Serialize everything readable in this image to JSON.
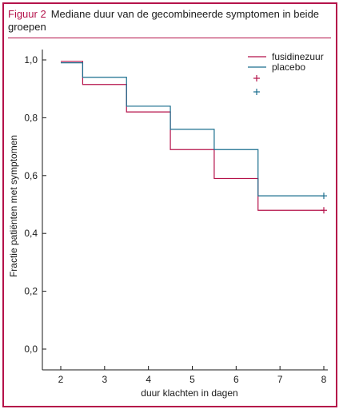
{
  "figure": {
    "label": "Figuur 2",
    "title": "Mediane duur van de gecombineerde symptomen in beide groepen"
  },
  "chart_data": {
    "type": "line",
    "step": true,
    "xlabel": "duur klachten in dagen",
    "ylabel": "Fractie patiënten met symptomen",
    "xlim": [
      2,
      8
    ],
    "ylim": [
      0,
      1
    ],
    "x_ticks": [
      2,
      3,
      4,
      5,
      6,
      7,
      8
    ],
    "y_ticks": [
      0.0,
      0.2,
      0.4,
      0.6,
      0.8,
      1.0
    ],
    "y_tick_labels": [
      "0,0",
      "0,2",
      "0,4",
      "0,6",
      "0,8",
      "1,0"
    ],
    "grid": false,
    "legend_position": "top-right",
    "series": [
      {
        "name": "fusidinezuur",
        "color": "#b5124a",
        "x": [
          2,
          2.5,
          3.5,
          4.5,
          5.5,
          6.5,
          8
        ],
        "y": [
          0.995,
          0.915,
          0.82,
          0.69,
          0.59,
          0.48,
          0.48
        ],
        "censor_x": 8,
        "censor_y": 0.48
      },
      {
        "name": "placebo",
        "color": "#1a6e8e",
        "x": [
          2,
          2.5,
          3.5,
          4.5,
          5.5,
          6.5,
          8
        ],
        "y": [
          0.99,
          0.94,
          0.84,
          0.76,
          0.69,
          0.53,
          0.53
        ],
        "censor_x": 8,
        "censor_y": 0.53
      }
    ]
  }
}
